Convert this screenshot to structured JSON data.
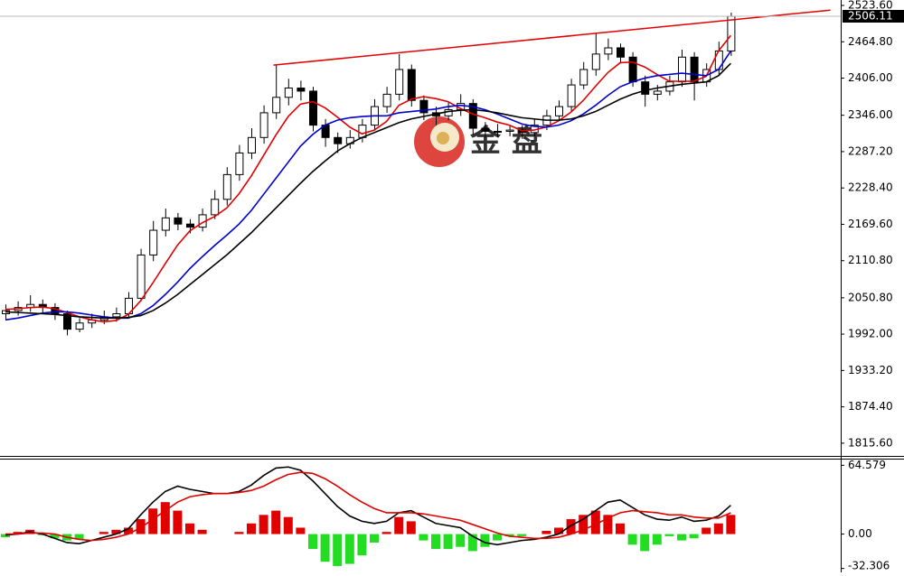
{
  "chart_data": {
    "type": "candlestick",
    "watermark": "金 盘",
    "ylim": [
      1795,
      2532.4
    ],
    "yticks": [
      {
        "value": 2523.6,
        "label": "2523.60"
      },
      {
        "value": 2464.8,
        "label": "2464.80"
      },
      {
        "value": 2406.0,
        "label": "2406.00"
      },
      {
        "value": 2346.0,
        "label": "2346.00"
      },
      {
        "value": 2287.2,
        "label": "2287.20"
      },
      {
        "value": 2228.4,
        "label": "2228.40"
      },
      {
        "value": 2169.6,
        "label": "2169.60"
      },
      {
        "value": 2110.8,
        "label": "2110.80"
      },
      {
        "value": 2050.8,
        "label": "2050.80"
      },
      {
        "value": 1992.0,
        "label": "1992.00"
      },
      {
        "value": 1933.2,
        "label": "1933.20"
      },
      {
        "value": 1874.4,
        "label": "1874.40"
      },
      {
        "value": 1815.6,
        "label": "1815.60"
      }
    ],
    "current_price": {
      "value": 2506.11,
      "label": "2506.11"
    },
    "ohlc": [
      [
        2025,
        2040,
        2015,
        2030
      ],
      [
        2030,
        2045,
        2022,
        2035
      ],
      [
        2035,
        2055,
        2028,
        2040
      ],
      [
        2040,
        2048,
        2025,
        2035
      ],
      [
        2035,
        2042,
        2015,
        2025
      ],
      [
        2025,
        2030,
        1990,
        2000
      ],
      [
        2000,
        2018,
        1995,
        2010
      ],
      [
        2010,
        2025,
        2002,
        2015
      ],
      [
        2015,
        2030,
        2008,
        2020
      ],
      [
        2020,
        2035,
        2012,
        2025
      ],
      [
        2025,
        2060,
        2018,
        2050
      ],
      [
        2050,
        2130,
        2045,
        2120
      ],
      [
        2120,
        2175,
        2110,
        2160
      ],
      [
        2160,
        2195,
        2150,
        2180
      ],
      [
        2180,
        2188,
        2160,
        2170
      ],
      [
        2170,
        2178,
        2155,
        2165
      ],
      [
        2165,
        2195,
        2158,
        2185
      ],
      [
        2185,
        2225,
        2178,
        2210
      ],
      [
        2210,
        2262,
        2200,
        2250
      ],
      [
        2250,
        2298,
        2240,
        2285
      ],
      [
        2285,
        2325,
        2275,
        2310
      ],
      [
        2310,
        2362,
        2300,
        2350
      ],
      [
        2350,
        2428,
        2340,
        2375
      ],
      [
        2375,
        2405,
        2362,
        2390
      ],
      [
        2390,
        2402,
        2370,
        2385
      ],
      [
        2385,
        2392,
        2320,
        2330
      ],
      [
        2330,
        2340,
        2295,
        2310
      ],
      [
        2310,
        2318,
        2285,
        2300
      ],
      [
        2300,
        2322,
        2292,
        2310
      ],
      [
        2310,
        2340,
        2302,
        2330
      ],
      [
        2330,
        2372,
        2322,
        2360
      ],
      [
        2360,
        2392,
        2350,
        2380
      ],
      [
        2380,
        2445,
        2370,
        2420
      ],
      [
        2420,
        2428,
        2360,
        2370
      ],
      [
        2370,
        2378,
        2338,
        2350
      ],
      [
        2350,
        2360,
        2330,
        2345
      ],
      [
        2345,
        2368,
        2338,
        2355
      ],
      [
        2355,
        2380,
        2345,
        2365
      ],
      [
        2365,
        2372,
        2315,
        2325
      ],
      [
        2325,
        2335,
        2310,
        2320
      ],
      [
        2320,
        2332,
        2310,
        2320
      ],
      [
        2320,
        2330,
        2312,
        2322
      ],
      [
        2322,
        2330,
        2308,
        2318
      ],
      [
        2318,
        2340,
        2312,
        2330
      ],
      [
        2330,
        2355,
        2322,
        2345
      ],
      [
        2345,
        2370,
        2338,
        2360
      ],
      [
        2360,
        2405,
        2352,
        2395
      ],
      [
        2395,
        2432,
        2388,
        2420
      ],
      [
        2420,
        2478,
        2410,
        2445
      ],
      [
        2445,
        2470,
        2435,
        2455
      ],
      [
        2455,
        2462,
        2430,
        2440
      ],
      [
        2440,
        2448,
        2392,
        2400
      ],
      [
        2400,
        2410,
        2360,
        2380
      ],
      [
        2380,
        2395,
        2370,
        2385
      ],
      [
        2385,
        2410,
        2378,
        2400
      ],
      [
        2400,
        2452,
        2392,
        2440
      ],
      [
        2440,
        2448,
        2370,
        2400
      ],
      [
        2400,
        2430,
        2392,
        2420
      ],
      [
        2420,
        2465,
        2412,
        2450
      ],
      [
        2450,
        2512,
        2442,
        2506
      ]
    ],
    "series": [
      {
        "color": "#e00000",
        "values": [
          2032,
          2033,
          2035,
          2036,
          2033,
          2027,
          2020,
          2015,
          2012,
          2014,
          2024,
          2046,
          2075,
          2106,
          2136,
          2159,
          2172,
          2182,
          2196,
          2219,
          2248,
          2281,
          2314,
          2344,
          2364,
          2368,
          2358,
          2343,
          2327,
          2316,
          2322,
          2336,
          2362,
          2372,
          2376,
          2373,
          2368,
          2357,
          2348,
          2342,
          2335,
          2330,
          2321,
          2322,
          2327,
          2337,
          2351,
          2370,
          2393,
          2415,
          2431,
          2432,
          2424,
          2412,
          2401,
          2401,
          2401,
          2409,
          2450,
          2475
        ]
      },
      {
        "color": "#0000cc",
        "values": [
          2015,
          2018,
          2022,
          2026,
          2028,
          2028,
          2026,
          2023,
          2020,
          2018,
          2018,
          2025,
          2038,
          2056,
          2076,
          2098,
          2117,
          2135,
          2152,
          2170,
          2192,
          2218,
          2244,
          2270,
          2296,
          2315,
          2330,
          2338,
          2342,
          2344,
          2345,
          2345,
          2350,
          2352,
          2354,
          2356,
          2360,
          2362,
          2360,
          2355,
          2348,
          2340,
          2332,
          2328,
          2327,
          2330,
          2337,
          2348,
          2362,
          2378,
          2392,
          2400,
          2406,
          2410,
          2412,
          2414,
          2412,
          2410,
          2420,
          2450
        ]
      },
      {
        "color": "#000000",
        "values": [
          2028,
          2027,
          2026,
          2025,
          2024,
          2022,
          2020,
          2019,
          2018,
          2018,
          2019,
          2022,
          2030,
          2042,
          2056,
          2072,
          2088,
          2104,
          2120,
          2138,
          2156,
          2176,
          2196,
          2216,
          2236,
          2255,
          2272,
          2288,
          2300,
          2310,
          2318,
          2326,
          2334,
          2340,
          2344,
          2348,
          2352,
          2354,
          2355,
          2353,
          2350,
          2346,
          2342,
          2340,
          2338,
          2338,
          2340,
          2345,
          2352,
          2362,
          2372,
          2380,
          2386,
          2390,
          2393,
          2396,
          2398,
          2400,
          2410,
          2430
        ]
      }
    ],
    "trendline": {
      "color": "#e00000",
      "x": [
        21.8,
        67.1
      ],
      "y": [
        2427,
        2516
      ]
    },
    "macd": {
      "ylim": [
        -36,
        70
      ],
      "yticks": [
        64.579,
        {
          "value": 0,
          "label": "0.00"
        },
        -32.306
      ],
      "up_color": "#e00000",
      "down_color": "#22dd22",
      "histogram": [
        -3,
        2,
        4,
        -1,
        -4,
        -6,
        -5,
        0,
        2,
        4,
        6,
        14,
        24,
        30,
        22,
        10,
        4,
        0,
        0,
        2,
        10,
        18,
        22,
        16,
        6,
        -14,
        -26,
        -30,
        -28,
        -20,
        -8,
        2,
        16,
        12,
        -6,
        -14,
        -14,
        -12,
        -16,
        -12,
        -6,
        -2,
        -2,
        0,
        3,
        6,
        14,
        18,
        22,
        18,
        10,
        -10,
        -16,
        -10,
        -2,
        -6,
        -4,
        6,
        10,
        18
      ],
      "main": {
        "color": "#000000",
        "values": [
          -1,
          0,
          2,
          0,
          -4,
          -8,
          -9,
          -6,
          -3,
          0,
          5,
          18,
          30,
          40,
          45,
          42,
          40,
          38,
          38,
          40,
          46,
          55,
          62,
          63,
          60,
          50,
          38,
          26,
          17,
          12,
          10,
          12,
          20,
          22,
          16,
          10,
          8,
          6,
          -2,
          -8,
          -10,
          -8,
          -6,
          -5,
          -3,
          0,
          8,
          14,
          22,
          30,
          32,
          25,
          18,
          14,
          13,
          16,
          12,
          13,
          17,
          27
        ]
      },
      "signal": {
        "color": "#e00000",
        "values": [
          0,
          0,
          1,
          1,
          0,
          -3,
          -5,
          -6,
          -5,
          -3,
          0,
          6,
          14,
          22,
          30,
          35,
          37,
          38,
          38,
          39,
          41,
          45,
          51,
          56,
          58,
          57,
          52,
          45,
          37,
          30,
          24,
          20,
          20,
          20,
          19,
          17,
          15,
          13,
          9,
          5,
          1,
          -2,
          -3,
          -4,
          -4,
          -3,
          0,
          4,
          9,
          15,
          20,
          22,
          21,
          20,
          18,
          18,
          16,
          15,
          15,
          20
        ]
      }
    }
  }
}
